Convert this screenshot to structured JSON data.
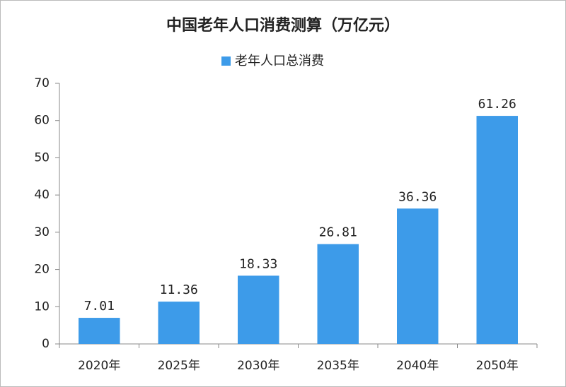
{
  "chart_data": {
    "type": "bar",
    "title": "中国老年人口消费测算（万亿元）",
    "series": [
      {
        "name": "老年人口总消费",
        "color": "#3d9be9",
        "values": [
          7.01,
          11.36,
          18.33,
          26.81,
          36.36,
          61.26
        ]
      }
    ],
    "categories": [
      "2020年",
      "2025年",
      "2030年",
      "2035年",
      "2040年",
      "2050年"
    ],
    "ylim": [
      0,
      70
    ],
    "yticks": [
      0,
      10,
      20,
      30,
      40,
      50,
      60,
      70
    ],
    "grid": false,
    "legend": "top",
    "data_labels": true
  }
}
